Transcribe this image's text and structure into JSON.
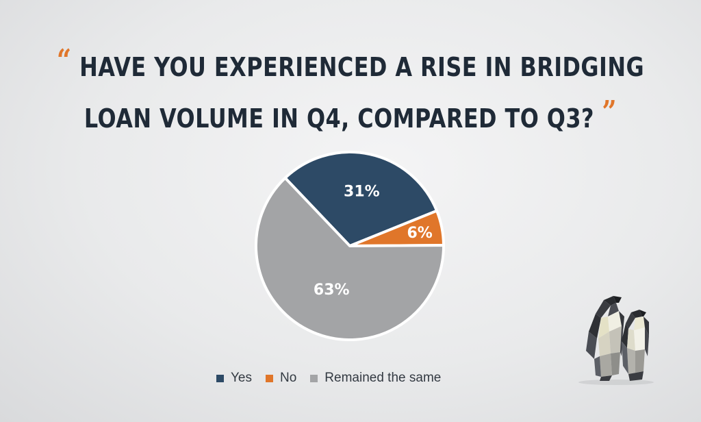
{
  "header": {
    "open_quote": "“",
    "line1": "HAVE YOU EXPERIENCED A RISE IN BRIDGING",
    "line2": "LOAN VOLUME IN Q4, COMPARED TO Q3?",
    "close_quote": "”"
  },
  "colors": {
    "accent": "#e0762a",
    "title": "#1f2a37",
    "yes": "#2d4a66",
    "no": "#e0762a",
    "same": "#a3a4a6"
  },
  "chart_data": {
    "type": "pie",
    "title": "HAVE YOU EXPERIENCED A RISE IN BRIDGING LOAN VOLUME IN Q4, COMPARED TO Q3?",
    "slices": [
      {
        "label": "Yes",
        "value": 31,
        "display": "31%",
        "color": "#2d4a66"
      },
      {
        "label": "No",
        "value": 6,
        "display": "6%",
        "color": "#e0762a"
      },
      {
        "label": "Remained the same",
        "value": 63,
        "display": "63%",
        "color": "#a3a4a6"
      }
    ],
    "legend_position": "bottom"
  },
  "legend": {
    "yes": "Yes",
    "no": "No",
    "same": "Remained the same"
  },
  "decoration": {
    "icon": "penguins-icon"
  }
}
